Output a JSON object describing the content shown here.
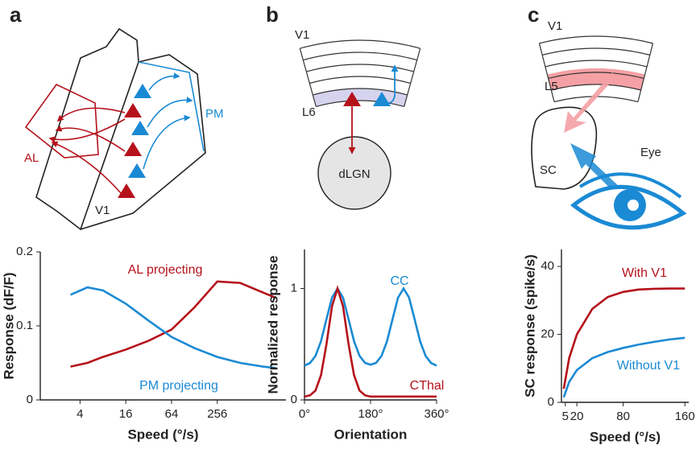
{
  "panels": [
    "a",
    "b",
    "c"
  ],
  "diagrams": {
    "a": {
      "labels": [
        "AL",
        "PM",
        "V1"
      ]
    },
    "b": {
      "labels": [
        "V1",
        "L6",
        "dLGN"
      ]
    },
    "c": {
      "labels": [
        "V1",
        "L5",
        "SC",
        "Eye"
      ]
    }
  },
  "chart_data": [
    {
      "type": "line",
      "xlabel": "Speed (°/s)",
      "ylabel": "Response (dF/F)",
      "xscale": "log",
      "x": [
        3,
        5,
        8,
        16,
        32,
        64,
        128,
        256,
        512,
        1024,
        1500
      ],
      "xlim": [
        1.2,
        2048
      ],
      "xticks": [
        4,
        16,
        64,
        256
      ],
      "ylim": [
        0,
        0.2
      ],
      "yticks": [
        0,
        0.1,
        0.2
      ],
      "series": [
        {
          "name": "AL projecting",
          "color": "#b5121b",
          "values": [
            0.045,
            0.05,
            0.058,
            0.068,
            0.08,
            0.095,
            0.125,
            0.16,
            0.158,
            0.145,
            0.138
          ]
        },
        {
          "name": "PM projecting",
          "color": "#1a8ad4",
          "values": [
            0.142,
            0.152,
            0.148,
            0.13,
            0.107,
            0.085,
            0.07,
            0.058,
            0.05,
            0.045,
            0.043
          ]
        }
      ]
    },
    {
      "type": "line",
      "xlabel": "Orientation",
      "ylabel": "Normalized response",
      "x": [
        0,
        15,
        30,
        45,
        60,
        75,
        90,
        105,
        120,
        135,
        150,
        165,
        180,
        195,
        210,
        225,
        240,
        255,
        270,
        285,
        300,
        315,
        330,
        345,
        360
      ],
      "xlim": [
        0,
        360
      ],
      "xticks": [
        {
          "value": 0,
          "label": "0°"
        },
        {
          "value": 180,
          "label": "180°"
        },
        {
          "value": 360,
          "label": "360°"
        }
      ],
      "ylim": [
        0,
        1.35
      ],
      "yticks": [
        0,
        1
      ],
      "series": [
        {
          "name": "CC",
          "color": "#1a8ad4",
          "values": [
            0.308,
            0.331,
            0.395,
            0.527,
            0.725,
            0.918,
            1.0,
            0.918,
            0.725,
            0.527,
            0.395,
            0.332,
            0.316,
            0.332,
            0.395,
            0.527,
            0.725,
            0.918,
            1.0,
            0.918,
            0.725,
            0.527,
            0.395,
            0.331,
            0.308
          ]
        },
        {
          "name": "CThal",
          "color": "#b5121b",
          "values": [
            0.03,
            0.041,
            0.084,
            0.222,
            0.502,
            0.84,
            1.0,
            0.84,
            0.502,
            0.222,
            0.084,
            0.041,
            0.03,
            0.03,
            0.03,
            0.03,
            0.03,
            0.03,
            0.03,
            0.03,
            0.03,
            0.03,
            0.03,
            0.03,
            0.03
          ]
        }
      ]
    },
    {
      "type": "line",
      "xlabel": "Speed (°/s)",
      "ylabel": "SC response (spike/s)",
      "x": [
        3,
        10,
        20,
        40,
        60,
        80,
        100,
        120,
        140,
        160
      ],
      "xlim": [
        0,
        165
      ],
      "xticks": [
        5,
        20,
        80,
        160
      ],
      "ylim": [
        0,
        45
      ],
      "yticks": [
        0,
        20,
        40
      ],
      "series": [
        {
          "name": "With V1",
          "color": "#b5121b",
          "values": [
            4,
            13,
            20,
            27.5,
            31,
            32.5,
            33.2,
            33.4,
            33.5,
            33.5
          ]
        },
        {
          "name": "Without V1",
          "color": "#1a8ad4",
          "values": [
            1.5,
            6,
            9.5,
            13,
            14.8,
            16,
            17,
            17.8,
            18.5,
            19
          ]
        }
      ]
    }
  ]
}
